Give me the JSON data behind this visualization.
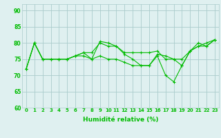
{
  "xlabel": "Humidité relative (%)",
  "x": [
    0,
    1,
    2,
    3,
    4,
    5,
    6,
    7,
    8,
    9,
    10,
    11,
    12,
    13,
    14,
    15,
    16,
    17,
    18,
    19,
    20,
    21,
    22,
    23
  ],
  "line1": [
    72,
    80,
    75,
    75,
    75,
    75,
    76,
    77,
    75,
    80.5,
    80,
    79,
    76.5,
    75,
    73,
    73,
    76.5,
    76,
    75,
    73,
    77.5,
    80,
    79,
    81
  ],
  "line2": [
    72,
    80,
    75,
    75,
    75,
    75,
    76,
    77,
    77,
    80,
    79,
    79,
    77,
    77,
    77,
    77,
    77.5,
    75,
    75,
    75,
    77.5,
    79,
    80,
    81
  ],
  "line3": [
    72,
    80,
    75,
    75,
    75,
    75,
    76,
    76,
    75,
    76,
    75,
    75,
    74,
    73,
    73,
    73,
    76,
    70,
    68,
    73,
    77.5,
    79,
    79,
    81
  ],
  "line_color": "#00bb00",
  "bg_color": "#dff0f0",
  "grid_color": "#aacccc",
  "ylim": [
    60,
    92
  ],
  "yticks": [
    60,
    65,
    70,
    75,
    80,
    85,
    90
  ],
  "xtick_labels": [
    "0",
    "1",
    "2",
    "3",
    "4",
    "5",
    "6",
    "7",
    "8",
    "9",
    "10",
    "11",
    "12",
    "13",
    "14",
    "15",
    "16",
    "17",
    "18",
    "19",
    "20",
    "21",
    "22",
    "23"
  ]
}
